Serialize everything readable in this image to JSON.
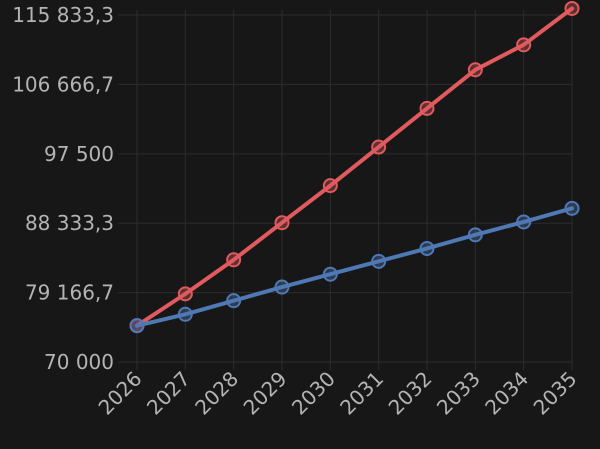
{
  "chart_data": {
    "type": "line",
    "title": "",
    "xlabel": "",
    "ylabel": "",
    "categories": [
      "2026",
      "2027",
      "2028",
      "2029",
      "2030",
      "2031",
      "2032",
      "2033",
      "2034",
      "2035"
    ],
    "ylim": [
      70000,
      116500
    ],
    "yticks": [
      70000,
      79166.7,
      88333.3,
      97500,
      106666.7,
      115833.3
    ],
    "ytick_labels": [
      "70 000",
      "79 166,7",
      "88 333,3",
      "97 500",
      "106 666,7",
      "115 833,3"
    ],
    "grid": true,
    "legend": "none",
    "series": [
      {
        "color": "#e05a5e",
        "values": [
          74800,
          79000,
          83500,
          88400,
          93300,
          98400,
          103500,
          108600,
          111900,
          116700
        ]
      },
      {
        "color": "#4f79b5",
        "values": [
          74800,
          76300,
          78100,
          79900,
          81600,
          83300,
          85000,
          86800,
          88500,
          90300
        ]
      }
    ]
  }
}
